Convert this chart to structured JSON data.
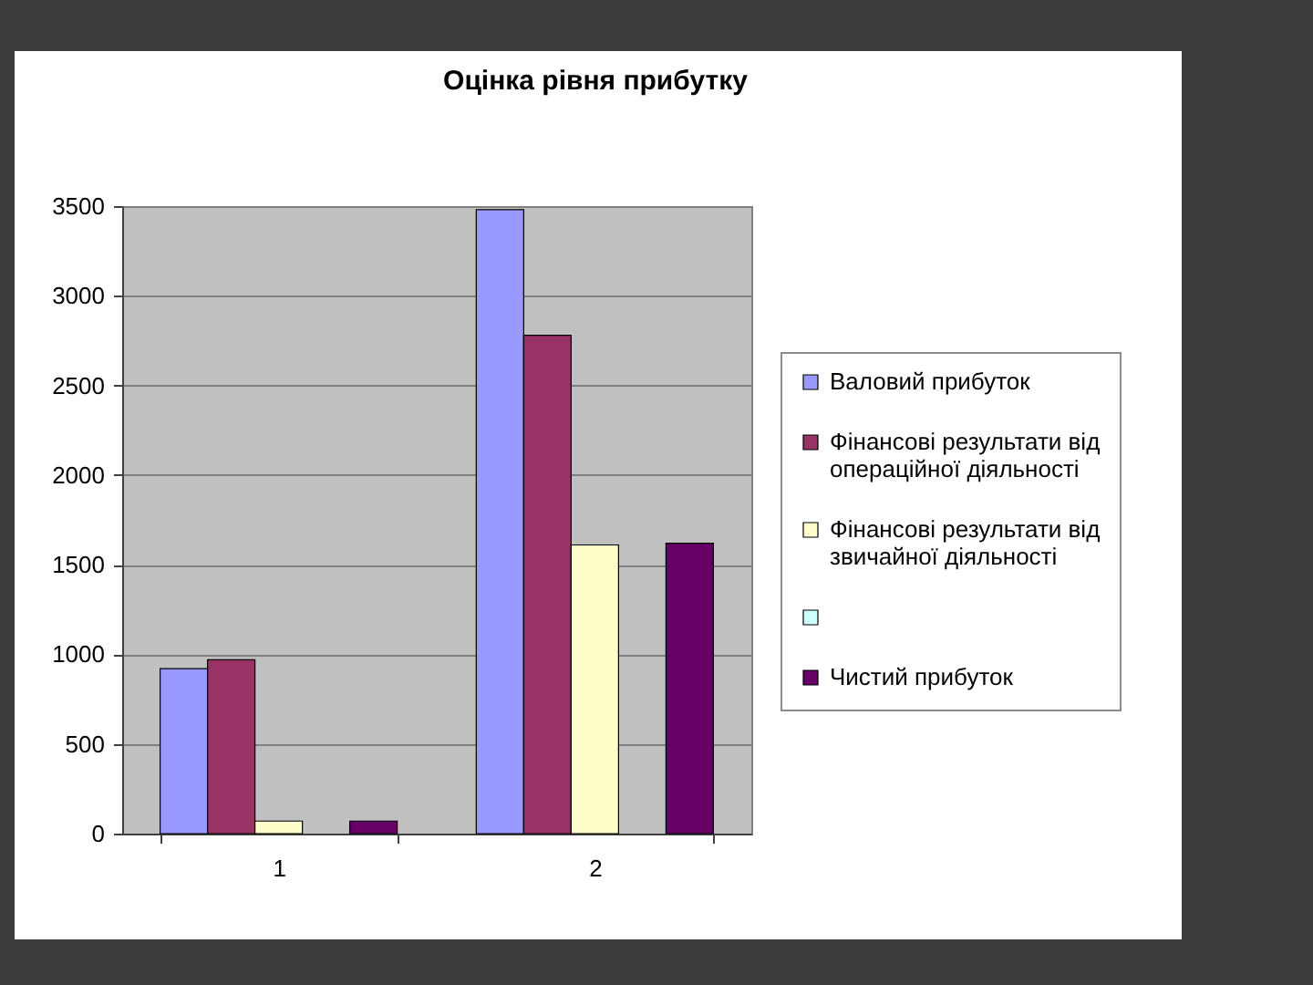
{
  "chart_data": {
    "type": "bar",
    "title": "Оцінка рівня прибутку",
    "categories": [
      "1",
      "2"
    ],
    "series": [
      {
        "name": "Валовий прибуток",
        "color": "#9999ff",
        "values": [
          920,
          3480
        ]
      },
      {
        "name": "Фінансові результати від операційної діяльності",
        "color": "#993366",
        "values": [
          970,
          2780
        ]
      },
      {
        "name": "Фінансові результати від звичайної діяльності",
        "color": "#ffffcc",
        "values": [
          70,
          1610
        ]
      },
      {
        "color": "#ccffff",
        "values": [
          null,
          null
        ]
      },
      {
        "name": "Чистий прибуток",
        "color": "#660066",
        "values": [
          70,
          1620
        ]
      }
    ],
    "ylim": [
      0,
      3500
    ],
    "yticks": [
      0,
      500,
      1000,
      1500,
      2000,
      2500,
      3000,
      3500
    ],
    "grid": "y",
    "legend": "right"
  }
}
